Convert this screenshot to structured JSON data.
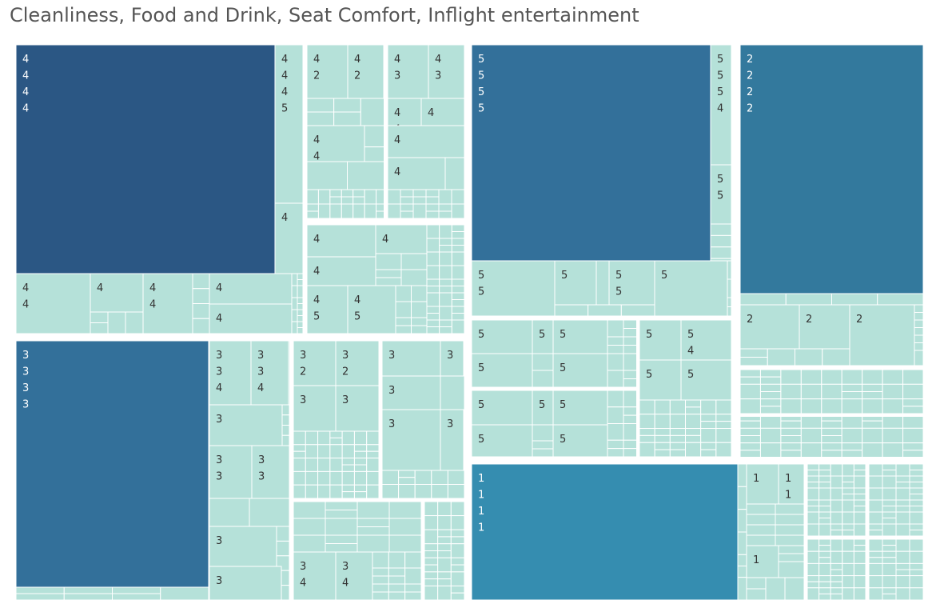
{
  "title": "Cleanliness, Food and Drink, Seat Comfort, Inflight entertainment",
  "chart_data": {
    "type": "treemap",
    "title": "Cleanliness, Food and Drink, Seat Comfort, Inflight entertainment",
    "dimensions": [
      "Cleanliness",
      "Food and Drink",
      "Seat Comfort",
      "Inflight entertainment"
    ],
    "colors": {
      "base": "#b5e1d9",
      "highlight_dark": "#2b5784",
      "highlight_mid": "#33709a",
      "highlight_bright": "#358db0",
      "border": "#ffffff"
    },
    "groups": [
      {
        "cleanliness": "4",
        "labeled_cells": [
          {
            "values": [
              "4",
              "4",
              "4",
              "4"
            ],
            "highlight": "#2b5784"
          },
          {
            "values": [
              "4",
              "4",
              "4",
              "5"
            ]
          },
          {
            "values": [
              "4",
              "2"
            ]
          },
          {
            "values": [
              "4",
              "2"
            ]
          },
          {
            "values": [
              "4",
              "3"
            ]
          },
          {
            "values": [
              "4",
              "3"
            ]
          },
          {
            "values": [
              "4",
              "4"
            ]
          },
          {
            "values": [
              "4"
            ]
          },
          {
            "values": [
              "4",
              "4"
            ]
          },
          {
            "values": [
              "4"
            ]
          },
          {
            "values": [
              "4"
            ]
          },
          {
            "values": [
              "4"
            ]
          },
          {
            "values": [
              "4"
            ]
          },
          {
            "values": [
              "4",
              "4"
            ]
          },
          {
            "values": [
              "4"
            ]
          },
          {
            "values": [
              "4",
              "4"
            ]
          },
          {
            "values": [
              "4"
            ]
          },
          {
            "values": [
              "4"
            ]
          },
          {
            "values": [
              "4"
            ]
          },
          {
            "values": [
              "4"
            ]
          },
          {
            "values": [
              "4",
              "5"
            ]
          },
          {
            "values": [
              "4",
              "5"
            ]
          }
        ]
      },
      {
        "cleanliness": "5",
        "labeled_cells": [
          {
            "values": [
              "5",
              "5",
              "5",
              "5"
            ],
            "highlight": "#33709a"
          },
          {
            "values": [
              "5",
              "5",
              "5",
              "4"
            ]
          },
          {
            "values": [
              "5",
              "5"
            ]
          },
          {
            "values": [
              "5",
              "5"
            ]
          },
          {
            "values": [
              "5"
            ]
          },
          {
            "values": [
              "5",
              "5"
            ]
          },
          {
            "values": [
              "5"
            ]
          },
          {
            "values": [
              "5"
            ]
          },
          {
            "values": [
              "5"
            ]
          },
          {
            "values": [
              "5"
            ]
          },
          {
            "values": [
              "5"
            ]
          },
          {
            "values": [
              "5"
            ]
          },
          {
            "values": [
              "5",
              "4"
            ]
          },
          {
            "values": [
              "5"
            ]
          },
          {
            "values": [
              "5"
            ]
          },
          {
            "values": [
              "5"
            ]
          },
          {
            "values": [
              "5"
            ]
          },
          {
            "values": [
              "5"
            ]
          },
          {
            "values": [
              "5"
            ]
          },
          {
            "values": [
              "5"
            ]
          },
          {
            "values": [
              "5"
            ]
          }
        ]
      },
      {
        "cleanliness": "2",
        "labeled_cells": [
          {
            "values": [
              "2",
              "2",
              "2",
              "2"
            ],
            "highlight": "#33799d"
          },
          {
            "values": [
              "2"
            ]
          },
          {
            "values": [
              "2"
            ]
          },
          {
            "values": [
              "2"
            ]
          }
        ]
      },
      {
        "cleanliness": "3",
        "labeled_cells": [
          {
            "values": [
              "3",
              "3",
              "3",
              "3"
            ],
            "highlight": "#33709a"
          },
          {
            "values": [
              "3",
              "3",
              "4"
            ]
          },
          {
            "values": [
              "3",
              "3",
              "4"
            ]
          },
          {
            "values": [
              "3",
              "2"
            ]
          },
          {
            "values": [
              "3",
              "2"
            ]
          },
          {
            "values": [
              "3"
            ]
          },
          {
            "values": [
              "3"
            ]
          },
          {
            "values": [
              "3"
            ]
          },
          {
            "values": [
              "3"
            ]
          },
          {
            "values": [
              "3"
            ]
          },
          {
            "values": [
              "3"
            ]
          },
          {
            "values": [
              "3"
            ]
          },
          {
            "values": [
              "3"
            ]
          },
          {
            "values": [
              "3",
              "3"
            ]
          },
          {
            "values": [
              "3",
              "3"
            ]
          },
          {
            "values": [
              "3"
            ]
          },
          {
            "values": [
              "3"
            ]
          },
          {
            "values": [
              "3",
              "4"
            ]
          },
          {
            "values": [
              "3",
              "4"
            ]
          }
        ]
      },
      {
        "cleanliness": "1",
        "labeled_cells": [
          {
            "values": [
              "1",
              "1",
              "1",
              "1"
            ],
            "highlight": "#358db0"
          },
          {
            "values": [
              "1"
            ]
          },
          {
            "values": [
              "1",
              "1"
            ]
          },
          {
            "values": [
              "1"
            ]
          }
        ]
      }
    ]
  }
}
